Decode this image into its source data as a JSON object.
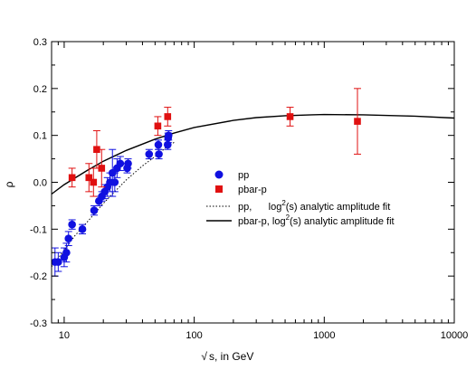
{
  "chart_data": {
    "type": "scatter",
    "title": "",
    "xlabel": "s, in GeV",
    "xlabel_prefix": "√",
    "ylabel": "ρ",
    "xscale": "log",
    "xlim": [
      8,
      10000
    ],
    "ylim": [
      -0.3,
      0.3
    ],
    "x_ticks": [
      10,
      100,
      1000,
      10000
    ],
    "x_tick_labels": [
      "10",
      "100",
      "1000",
      "10000"
    ],
    "y_ticks": [
      -0.3,
      -0.2,
      -0.1,
      0.0,
      0.1,
      0.2,
      0.3
    ],
    "y_tick_labels": [
      "-0.3",
      "-0.2",
      "-0.1",
      "0.0",
      "0.1",
      "0.2",
      "0.3"
    ],
    "grid": false,
    "legend_position": "center-right",
    "series": [
      {
        "name": "pp",
        "kind": "points",
        "marker": "circle",
        "color": "#1010e0",
        "points": [
          {
            "x": 8.5,
            "y": -0.17,
            "err": 0.03
          },
          {
            "x": 9.0,
            "y": -0.17,
            "err": 0.02
          },
          {
            "x": 10.0,
            "y": -0.16,
            "err": 0.02
          },
          {
            "x": 10.4,
            "y": -0.15,
            "err": 0.02
          },
          {
            "x": 10.8,
            "y": -0.12,
            "err": 0.015
          },
          {
            "x": 11.5,
            "y": -0.09,
            "err": 0.01
          },
          {
            "x": 13.8,
            "y": -0.1,
            "err": 0.01
          },
          {
            "x": 17.0,
            "y": -0.06,
            "err": 0.01
          },
          {
            "x": 18.5,
            "y": -0.04,
            "err": 0.01
          },
          {
            "x": 19.5,
            "y": -0.03,
            "err": 0.01
          },
          {
            "x": 20.5,
            "y": -0.02,
            "err": 0.015
          },
          {
            "x": 21.5,
            "y": -0.01,
            "err": 0.02
          },
          {
            "x": 22.5,
            "y": 0.0,
            "err": 0.02
          },
          {
            "x": 23.5,
            "y": 0.02,
            "err": 0.05
          },
          {
            "x": 24.5,
            "y": 0.0,
            "err": 0.02
          },
          {
            "x": 25.5,
            "y": 0.03,
            "err": 0.02
          },
          {
            "x": 27.0,
            "y": 0.04,
            "err": 0.015
          },
          {
            "x": 30.5,
            "y": 0.03,
            "err": 0.01
          },
          {
            "x": 31.0,
            "y": 0.04,
            "err": 0.01
          },
          {
            "x": 45.0,
            "y": 0.06,
            "err": 0.01
          },
          {
            "x": 53.0,
            "y": 0.08,
            "err": 0.01
          },
          {
            "x": 53.5,
            "y": 0.06,
            "err": 0.01
          },
          {
            "x": 62.5,
            "y": 0.08,
            "err": 0.01
          },
          {
            "x": 63.0,
            "y": 0.095,
            "err": 0.01
          },
          {
            "x": 63.5,
            "y": 0.1,
            "err": 0.01
          }
        ]
      },
      {
        "name": "pbar-p",
        "kind": "points",
        "marker": "square",
        "color": "#e01010",
        "points": [
          {
            "x": 11.5,
            "y": 0.01,
            "err": 0.02
          },
          {
            "x": 15.5,
            "y": 0.01,
            "err": 0.03
          },
          {
            "x": 16.8,
            "y": 0.0,
            "err": 0.03
          },
          {
            "x": 17.8,
            "y": 0.07,
            "err": 0.04
          },
          {
            "x": 19.4,
            "y": 0.03,
            "err": 0.04
          },
          {
            "x": 52.5,
            "y": 0.12,
            "err": 0.02
          },
          {
            "x": 62.5,
            "y": 0.14,
            "err": 0.02
          },
          {
            "x": 546,
            "y": 0.14,
            "err": 0.02
          },
          {
            "x": 1800,
            "y": 0.13,
            "err": 0.07
          }
        ]
      },
      {
        "name": "pp,      log",
        "name_sup": "2",
        "name_suffix": "(s) analytic amplitude fit",
        "kind": "curve",
        "style": "dotted",
        "color": "#000000",
        "points": [
          {
            "x": 8,
            "y": -0.18
          },
          {
            "x": 10,
            "y": -0.145
          },
          {
            "x": 12,
            "y": -0.115
          },
          {
            "x": 15,
            "y": -0.085
          },
          {
            "x": 20,
            "y": -0.045
          },
          {
            "x": 30,
            "y": 0.005
          },
          {
            "x": 40,
            "y": 0.035
          },
          {
            "x": 50,
            "y": 0.055
          },
          {
            "x": 63,
            "y": 0.078
          },
          {
            "x": 70,
            "y": 0.085
          }
        ]
      },
      {
        "name": "pbar-p, log",
        "name_sup": "2",
        "name_suffix": "(s) analytic amplitude fit",
        "kind": "curve",
        "style": "solid",
        "color": "#000000",
        "points": [
          {
            "x": 8,
            "y": -0.025
          },
          {
            "x": 10,
            "y": -0.005
          },
          {
            "x": 15,
            "y": 0.025
          },
          {
            "x": 20,
            "y": 0.045
          },
          {
            "x": 30,
            "y": 0.068
          },
          {
            "x": 50,
            "y": 0.092
          },
          {
            "x": 70,
            "y": 0.105
          },
          {
            "x": 100,
            "y": 0.117
          },
          {
            "x": 200,
            "y": 0.132
          },
          {
            "x": 300,
            "y": 0.138
          },
          {
            "x": 500,
            "y": 0.142
          },
          {
            "x": 800,
            "y": 0.144
          },
          {
            "x": 1000,
            "y": 0.1445
          },
          {
            "x": 2000,
            "y": 0.144
          },
          {
            "x": 5000,
            "y": 0.141
          },
          {
            "x": 10000,
            "y": 0.137
          }
        ]
      }
    ]
  }
}
